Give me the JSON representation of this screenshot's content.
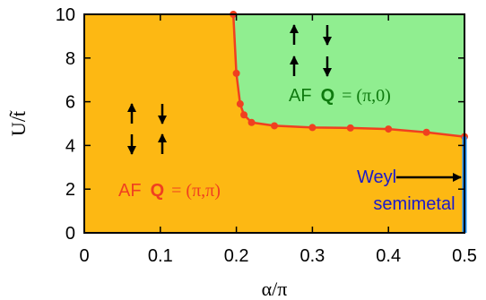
{
  "chart_data": {
    "type": "line",
    "title": "",
    "xlabel": "α/π",
    "ylabel": "U/t̃",
    "xlim": [
      0,
      0.5
    ],
    "ylim": [
      0,
      10
    ],
    "x_ticks": [
      "0",
      "0.1",
      "0.2",
      "0.3",
      "0.4",
      "0.5"
    ],
    "y_ticks": [
      "0",
      "2",
      "4",
      "6",
      "8",
      "10"
    ],
    "grid": false,
    "series": [
      {
        "name": "",
        "x": [
          0.196,
          0.2,
          0.205,
          0.21,
          0.22,
          0.25,
          0.3,
          0.35,
          0.4,
          0.45,
          0.5
        ],
        "y": [
          10.0,
          7.3,
          5.9,
          5.4,
          5.05,
          4.9,
          4.82,
          4.8,
          4.75,
          4.6,
          4.4
        ]
      }
    ],
    "weyl_line": {
      "x": 0.5,
      "y_range": [
        0,
        4.4
      ]
    },
    "regions": {
      "af_pi_pi": {
        "prefix": "AF",
        "bold": "Q",
        "suffix": "= (π,π)"
      },
      "af_pi_0": {
        "prefix": "AF",
        "bold": "Q",
        "suffix": "= (π,0)"
      },
      "weyl": {
        "line1": "Weyl",
        "line2": "semimetal"
      }
    },
    "colors": {
      "af_pi_pi_fill": "#FDB813",
      "af_pi_0_fill": "#90EE90",
      "boundary": "#F04020",
      "weyl_line": "#1E90FF",
      "af_pi_pi_text": "#F04020",
      "af_pi_0_text": "#0F7A0F",
      "weyl_text": "#1A1ACC"
    }
  }
}
